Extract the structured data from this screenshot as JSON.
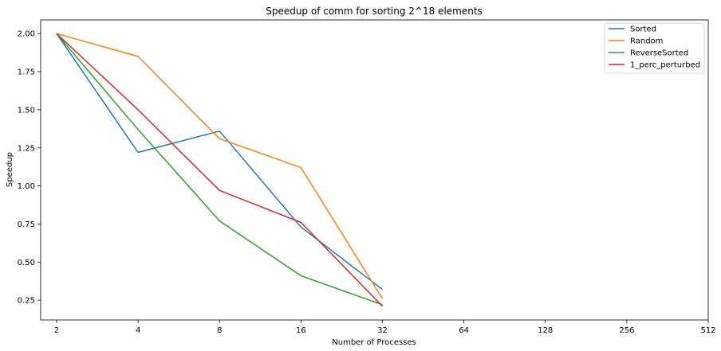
{
  "chart_data": {
    "type": "line",
    "title": "Speedup of comm for sorting 2^18 elements",
    "xlabel": "Number of Processes",
    "ylabel": "Speedup",
    "x_scale": "log2",
    "x_ticks": [
      2,
      4,
      8,
      16,
      32,
      64,
      128,
      256,
      512
    ],
    "x_tick_labels": [
      "2",
      "4",
      "8",
      "16",
      "32",
      "64",
      "128",
      "256",
      "512"
    ],
    "xlim": [
      2,
      512
    ],
    "y_ticks": [
      0.25,
      0.5,
      0.75,
      1.0,
      1.25,
      1.5,
      1.75,
      2.0
    ],
    "y_tick_labels": [
      "0.25",
      "0.50",
      "0.75",
      "1.00",
      "1.25",
      "1.50",
      "1.75",
      "2.00"
    ],
    "ylim": [
      0.12,
      2.09
    ],
    "grid": false,
    "legend_position": "top-right",
    "x": [
      2,
      4,
      8,
      16,
      32
    ],
    "series": [
      {
        "name": "Sorted",
        "color": "#1f77b4",
        "values": [
          2.0,
          1.22,
          1.36,
          0.73,
          0.32
        ]
      },
      {
        "name": "Random",
        "color": "#ff7f0e",
        "values": [
          2.0,
          1.85,
          1.31,
          1.12,
          0.26
        ]
      },
      {
        "name": "ReverseSorted",
        "color": "#2ca02c",
        "values": [
          2.0,
          1.37,
          0.77,
          0.41,
          0.22
        ]
      },
      {
        "name": "1_perc_perturbed",
        "color": "#d62728",
        "values": [
          2.0,
          1.5,
          0.97,
          0.76,
          0.21
        ]
      }
    ]
  }
}
